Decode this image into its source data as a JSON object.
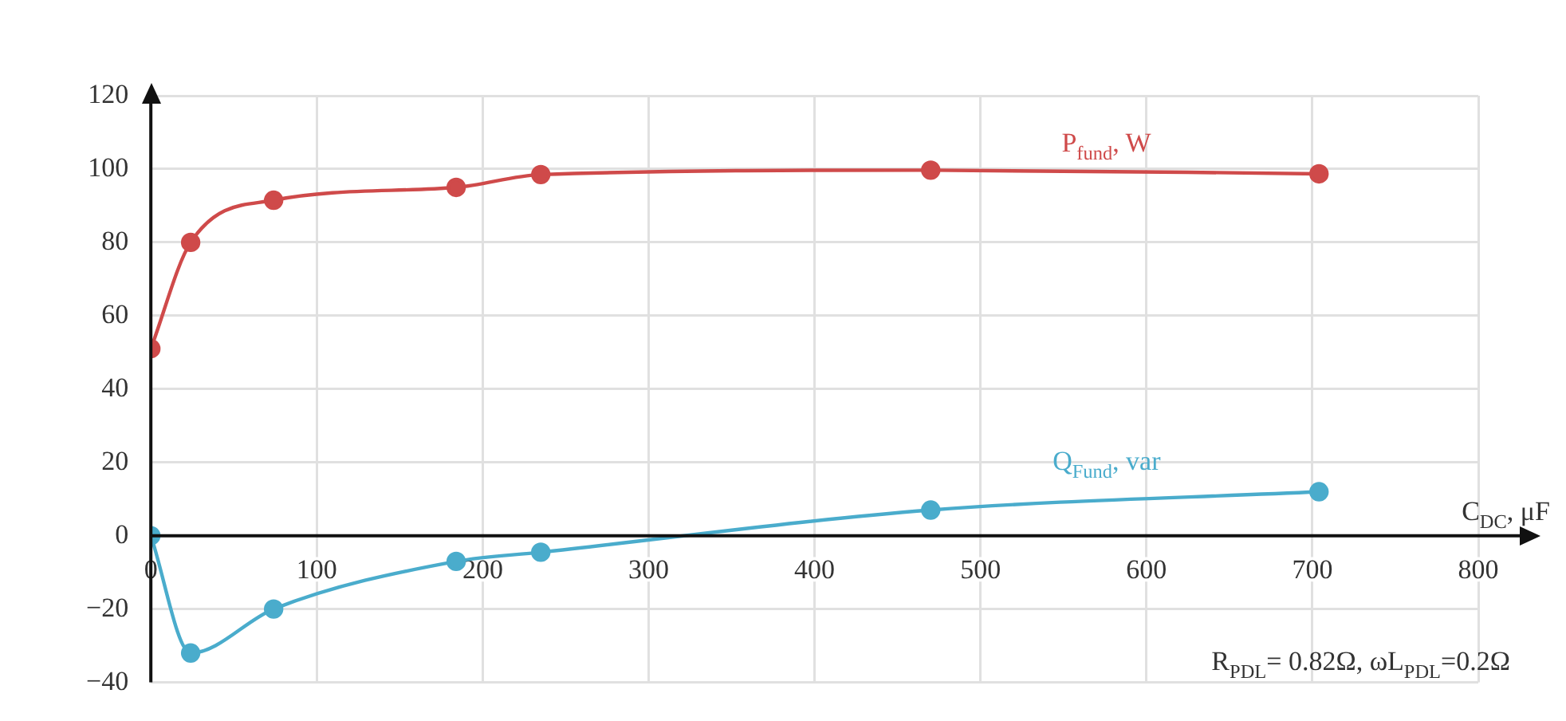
{
  "chart_data": {
    "type": "line",
    "xlabel": "C$_{DC}$, μF",
    "series": [
      {
        "name": "P$_{fund}$, W",
        "color": "#cf4a4a",
        "x": [
          0,
          24,
          74,
          184,
          235,
          470,
          704
        ],
        "values": [
          51,
          80,
          91.5,
          95,
          98.5,
          99.7,
          98.7
        ]
      },
      {
        "name": "Q$_{Fund}$, var",
        "color": "#4aaccc",
        "x": [
          0,
          24,
          74,
          184,
          235,
          470,
          704
        ],
        "values": [
          0,
          -32,
          -20,
          -7,
          -4.5,
          7,
          12
        ]
      }
    ],
    "xlim": [
      0,
      800
    ],
    "xticks": [
      0,
      100,
      200,
      300,
      400,
      500,
      600,
      700,
      800
    ],
    "ylim": [
      -40,
      120
    ],
    "yticks": [
      -40,
      -20,
      0,
      20,
      40,
      60,
      80,
      100,
      120
    ],
    "grid": true,
    "legend": false,
    "marker": "circle",
    "line_style": "solid",
    "annotations": [
      "R$_{PDL}$= 0.82Ω, ωL$_{PDL}$=0.2Ω"
    ]
  }
}
